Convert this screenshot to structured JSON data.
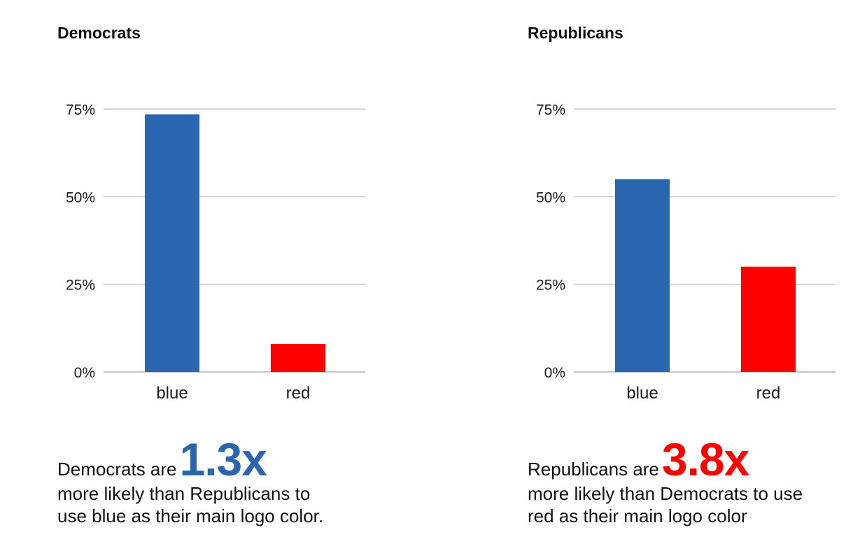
{
  "colors": {
    "blue": "#2a66b0",
    "red": "#ff0000",
    "grid": "#c8c8c8",
    "text": "#111111"
  },
  "chart_data": [
    {
      "type": "bar",
      "title": "Democrats",
      "categories": [
        "blue",
        "red"
      ],
      "values": [
        73.5,
        8
      ],
      "bar_colors": [
        "#2a66b0",
        "#ff0000"
      ],
      "yticks": [
        "0%",
        "25%",
        "50%",
        "75%"
      ],
      "ylim": [
        0,
        75
      ],
      "grid": true
    },
    {
      "type": "bar",
      "title": "Republicans",
      "categories": [
        "blue",
        "red"
      ],
      "values": [
        55,
        30
      ],
      "bar_colors": [
        "#2a66b0",
        "#ff0000"
      ],
      "yticks": [
        "0%",
        "25%",
        "50%",
        "75%"
      ],
      "ylim": [
        0,
        75
      ],
      "grid": true
    }
  ],
  "captions": [
    {
      "prefix": "Democrats are",
      "multiplier": "1.3x",
      "multiplier_color": "#2a66b0",
      "rest": "more likely than Republicans to\nuse blue as their main logo color."
    },
    {
      "prefix": "Republicans are",
      "multiplier": "3.8x",
      "multiplier_color": "#ff0000",
      "rest": "more likely than Democrats to use\nred as their main logo color"
    }
  ]
}
